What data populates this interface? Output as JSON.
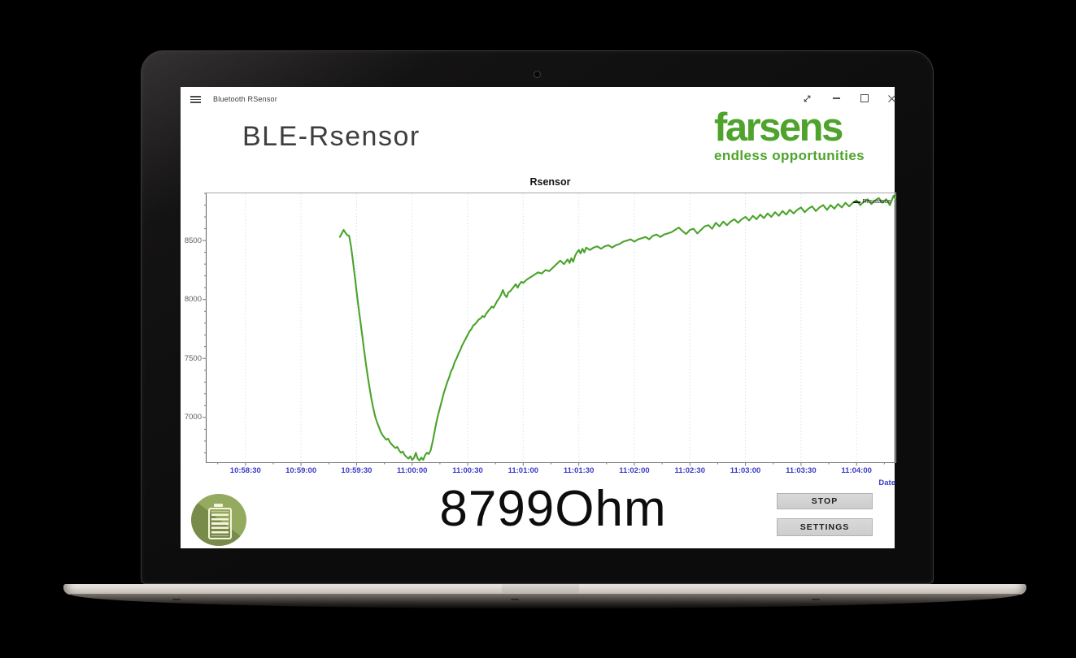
{
  "window": {
    "title": "Bluetooth RSensor"
  },
  "header": {
    "app_title": "BLE-Rsensor",
    "logo_text": "farsens",
    "logo_tagline": "endless opportunities",
    "logo_color": "#4da32c"
  },
  "reading": {
    "display": "8799Ohm"
  },
  "buttons": {
    "stop": "STOP",
    "settings": "SETTINGS"
  },
  "icons": [
    "hamburger-icon",
    "expand-icon",
    "minimize-icon",
    "maximize-icon",
    "close-icon",
    "battery-icon"
  ],
  "chart_data": {
    "type": "line",
    "title": "Rsensor",
    "xlabel": "Date",
    "legend_position": "top-right",
    "grid": "vertical-dotted",
    "line_color": "#4aa32b",
    "grid_color": "#cfe6f2",
    "x_label_color": "#3a3ac8",
    "y_label_color": "#5e5e5e",
    "x_axis": {
      "start_sec": 9,
      "end_sec": 381,
      "minor_step_sec": 15,
      "tick_secs": [
        30,
        60,
        90,
        120,
        150,
        180,
        210,
        240,
        270,
        300,
        330,
        360
      ],
      "tick_labels": [
        "10:58:30",
        "10:59:00",
        "10:59:30",
        "11:00:00",
        "11:00:30",
        "11:01:00",
        "11:01:30",
        "11:02:00",
        "11:02:30",
        "11:03:00",
        "11:03:30",
        "11:04:00"
      ]
    },
    "y_axis": {
      "min": 6620,
      "max": 8900,
      "minor_step": 100,
      "tick_values": [
        8500,
        8000,
        7500,
        7000
      ],
      "tick_labels": [
        "8500",
        "8000",
        "7500",
        "7000"
      ]
    },
    "series": [
      {
        "name": "Resistance",
        "points": [
          [
            81,
            8530
          ],
          [
            82,
            8560
          ],
          [
            83,
            8590
          ],
          [
            84,
            8565
          ],
          [
            85,
            8545
          ],
          [
            86,
            8540
          ],
          [
            87,
            8450
          ],
          [
            88,
            8330
          ],
          [
            89,
            8200
          ],
          [
            90,
            8070
          ],
          [
            91,
            7940
          ],
          [
            92,
            7820
          ],
          [
            93,
            7700
          ],
          [
            94,
            7580
          ],
          [
            95,
            7460
          ],
          [
            96,
            7350
          ],
          [
            97,
            7250
          ],
          [
            98,
            7160
          ],
          [
            99,
            7080
          ],
          [
            100,
            7010
          ],
          [
            101,
            6960
          ],
          [
            102,
            6920
          ],
          [
            103,
            6880
          ],
          [
            104,
            6850
          ],
          [
            105,
            6830
          ],
          [
            106,
            6810
          ],
          [
            107,
            6820
          ],
          [
            108,
            6790
          ],
          [
            109,
            6770
          ],
          [
            110,
            6755
          ],
          [
            111,
            6740
          ],
          [
            112,
            6750
          ],
          [
            113,
            6720
          ],
          [
            114,
            6700
          ],
          [
            115,
            6710
          ],
          [
            116,
            6680
          ],
          [
            117,
            6665
          ],
          [
            118,
            6650
          ],
          [
            119,
            6670
          ],
          [
            120,
            6640
          ],
          [
            121,
            6655
          ],
          [
            122,
            6700
          ],
          [
            123,
            6650
          ],
          [
            124,
            6635
          ],
          [
            125,
            6660
          ],
          [
            126,
            6640
          ],
          [
            127,
            6680
          ],
          [
            128,
            6700
          ],
          [
            129,
            6690
          ],
          [
            130,
            6720
          ],
          [
            131,
            6790
          ],
          [
            132,
            6870
          ],
          [
            133,
            6950
          ],
          [
            134,
            7020
          ],
          [
            135,
            7080
          ],
          [
            136,
            7140
          ],
          [
            137,
            7200
          ],
          [
            138,
            7250
          ],
          [
            139,
            7300
          ],
          [
            140,
            7340
          ],
          [
            141,
            7390
          ],
          [
            142,
            7420
          ],
          [
            143,
            7470
          ],
          [
            144,
            7500
          ],
          [
            145,
            7540
          ],
          [
            146,
            7570
          ],
          [
            147,
            7610
          ],
          [
            148,
            7640
          ],
          [
            149,
            7670
          ],
          [
            150,
            7700
          ],
          [
            151,
            7730
          ],
          [
            152,
            7750
          ],
          [
            153,
            7780
          ],
          [
            154,
            7790
          ],
          [
            155,
            7810
          ],
          [
            156,
            7830
          ],
          [
            157,
            7840
          ],
          [
            158,
            7860
          ],
          [
            159,
            7850
          ],
          [
            160,
            7880
          ],
          [
            161,
            7900
          ],
          [
            162,
            7920
          ],
          [
            163,
            7940
          ],
          [
            164,
            7930
          ],
          [
            165,
            7960
          ],
          [
            166,
            7990
          ],
          [
            167,
            8010
          ],
          [
            168,
            8040
          ],
          [
            169,
            8080
          ],
          [
            170,
            8040
          ],
          [
            171,
            8020
          ],
          [
            172,
            8060
          ],
          [
            173,
            8070
          ],
          [
            174,
            8090
          ],
          [
            175,
            8110
          ],
          [
            176,
            8130
          ],
          [
            177,
            8100
          ],
          [
            178,
            8130
          ],
          [
            179,
            8150
          ],
          [
            180,
            8140
          ],
          [
            182,
            8170
          ],
          [
            184,
            8190
          ],
          [
            186,
            8210
          ],
          [
            188,
            8230
          ],
          [
            190,
            8220
          ],
          [
            192,
            8250
          ],
          [
            194,
            8240
          ],
          [
            196,
            8270
          ],
          [
            198,
            8300
          ],
          [
            200,
            8330
          ],
          [
            202,
            8300
          ],
          [
            204,
            8340
          ],
          [
            205,
            8310
          ],
          [
            206,
            8350
          ],
          [
            207,
            8320
          ],
          [
            208,
            8370
          ],
          [
            209,
            8400
          ],
          [
            210,
            8420
          ],
          [
            211,
            8390
          ],
          [
            212,
            8430
          ],
          [
            213,
            8400
          ],
          [
            214,
            8440
          ],
          [
            216,
            8420
          ],
          [
            218,
            8440
          ],
          [
            220,
            8450
          ],
          [
            222,
            8430
          ],
          [
            224,
            8450
          ],
          [
            226,
            8460
          ],
          [
            228,
            8440
          ],
          [
            230,
            8460
          ],
          [
            232,
            8470
          ],
          [
            234,
            8490
          ],
          [
            236,
            8500
          ],
          [
            238,
            8510
          ],
          [
            240,
            8490
          ],
          [
            242,
            8510
          ],
          [
            244,
            8520
          ],
          [
            246,
            8530
          ],
          [
            248,
            8510
          ],
          [
            250,
            8540
          ],
          [
            252,
            8550
          ],
          [
            254,
            8530
          ],
          [
            256,
            8550
          ],
          [
            258,
            8560
          ],
          [
            260,
            8570
          ],
          [
            262,
            8590
          ],
          [
            264,
            8610
          ],
          [
            266,
            8580
          ],
          [
            268,
            8555
          ],
          [
            270,
            8590
          ],
          [
            272,
            8600
          ],
          [
            274,
            8560
          ],
          [
            276,
            8590
          ],
          [
            278,
            8620
          ],
          [
            280,
            8630
          ],
          [
            282,
            8600
          ],
          [
            284,
            8650
          ],
          [
            286,
            8620
          ],
          [
            288,
            8660
          ],
          [
            290,
            8630
          ],
          [
            292,
            8660
          ],
          [
            294,
            8680
          ],
          [
            296,
            8650
          ],
          [
            298,
            8680
          ],
          [
            300,
            8700
          ],
          [
            302,
            8670
          ],
          [
            304,
            8710
          ],
          [
            306,
            8680
          ],
          [
            308,
            8720
          ],
          [
            310,
            8690
          ],
          [
            312,
            8730
          ],
          [
            314,
            8700
          ],
          [
            316,
            8740
          ],
          [
            318,
            8710
          ],
          [
            320,
            8750
          ],
          [
            322,
            8720
          ],
          [
            324,
            8760
          ],
          [
            326,
            8730
          ],
          [
            328,
            8760
          ],
          [
            330,
            8780
          ],
          [
            332,
            8740
          ],
          [
            334,
            8770
          ],
          [
            336,
            8790
          ],
          [
            338,
            8750
          ],
          [
            340,
            8780
          ],
          [
            342,
            8800
          ],
          [
            344,
            8760
          ],
          [
            346,
            8800
          ],
          [
            348,
            8770
          ],
          [
            350,
            8810
          ],
          [
            352,
            8780
          ],
          [
            354,
            8820
          ],
          [
            356,
            8790
          ],
          [
            358,
            8820
          ],
          [
            360,
            8840
          ],
          [
            362,
            8800
          ],
          [
            364,
            8830
          ],
          [
            366,
            8850
          ],
          [
            368,
            8810
          ],
          [
            370,
            8840
          ],
          [
            372,
            8860
          ],
          [
            374,
            8820
          ],
          [
            376,
            8850
          ],
          [
            378,
            8800
          ],
          [
            379,
            8840
          ],
          [
            380,
            8880
          ],
          [
            381,
            8850
          ]
        ]
      }
    ]
  }
}
